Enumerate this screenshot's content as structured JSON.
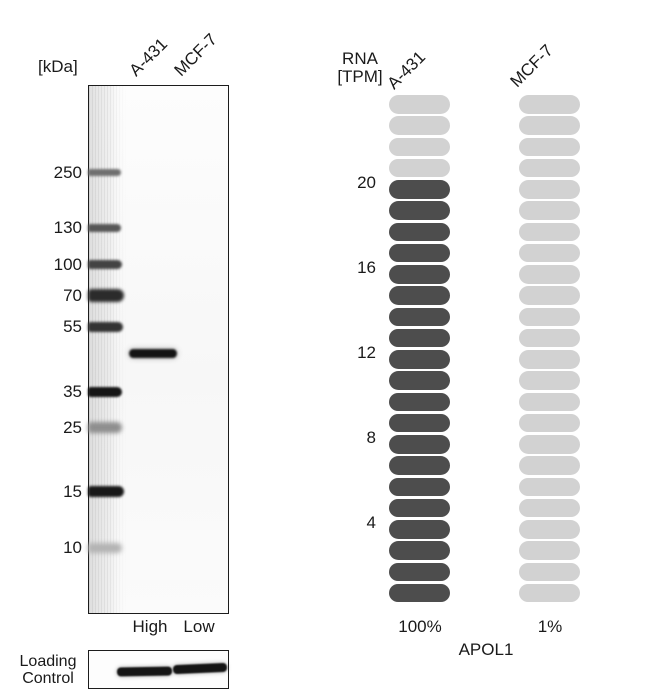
{
  "western_blot": {
    "kda_unit_label": "[kDa]",
    "lane_labels": [
      "A-431",
      "MCF-7"
    ],
    "ladder_labels": [
      "250",
      "130",
      "100",
      "70",
      "55",
      "35",
      "25",
      "15",
      "10"
    ],
    "expression_labels": [
      "High",
      "Low"
    ],
    "loading_control_label_lines": [
      "Loading",
      "Control"
    ]
  },
  "chart_data": {
    "type": "unit-bar",
    "title": "APOL1",
    "ylabel": "RNA [TPM]",
    "ylabel_lines": [
      "RNA",
      "[TPM]"
    ],
    "tick_values": [
      20,
      16,
      12,
      8,
      4
    ],
    "units_total": 24,
    "unit_value_tpm": 1,
    "ylim": [
      0,
      24
    ],
    "grid": false,
    "legend_position": "none",
    "series": [
      {
        "name": "A-431",
        "filled_units": 20,
        "percent_label": "100%"
      },
      {
        "name": "MCF-7",
        "filled_units": 0,
        "percent_label": "1%"
      }
    ],
    "colors": {
      "filled": "#4d4d4d",
      "empty": "#d2d2d2"
    }
  }
}
